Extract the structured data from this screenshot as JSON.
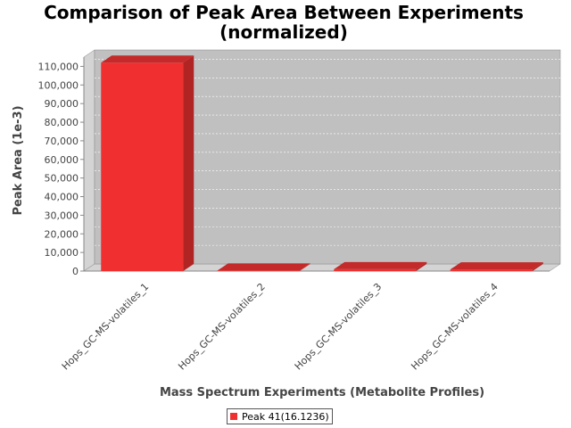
{
  "chart_data": {
    "type": "bar",
    "title_line1": "Comparison of Peak Area Between Experiments",
    "title_line2": "(normalized)",
    "xlabel": "Mass Spectrum Experiments (Metabolite Profiles)",
    "ylabel": "Peak Area (1e-3)",
    "categories": [
      "Hops_GC-MS-volatiles_1",
      "Hops_GC-MS-volatiles_2",
      "Hops_GC-MS-volatiles_3",
      "Hops_GC-MS-volatiles_4"
    ],
    "series": [
      {
        "name": "Peak 41(16.1236)",
        "values": [
          112000,
          300,
          1000,
          900
        ],
        "color": "#f03030"
      }
    ],
    "ylim": [
      0,
      115000
    ],
    "yticks": [
      0,
      10000,
      20000,
      30000,
      40000,
      50000,
      60000,
      70000,
      80000,
      90000,
      100000,
      110000
    ],
    "ytick_labels": [
      "0",
      "10,000",
      "20,000",
      "30,000",
      "40,000",
      "50,000",
      "60,000",
      "70,000",
      "80,000",
      "90,000",
      "100,000",
      "110,000"
    ],
    "grid": true,
    "legend_position": "bottom-center"
  }
}
